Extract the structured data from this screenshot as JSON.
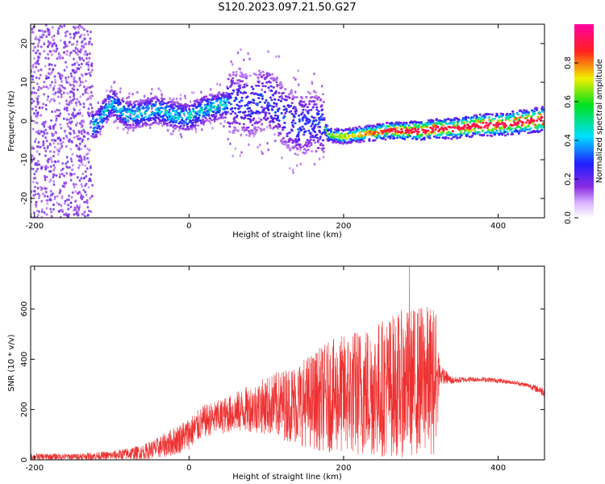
{
  "title": "S120.2023.097.21.50.G27",
  "chart_data": [
    {
      "type": "heatmap",
      "xlabel": "Height of straight line (km)",
      "ylabel": "Frequency (Hz)",
      "xlim": [
        -205,
        460
      ],
      "ylim": [
        -25,
        25
      ],
      "xticks": [
        -200,
        0,
        200,
        400
      ],
      "yticks": [
        -20,
        -10,
        0,
        10,
        20
      ],
      "colorbar": {
        "label": "Normalized spectral amplitude",
        "range": [
          0,
          1
        ],
        "ticks": [
          "0.0",
          "0.2",
          "0.4",
          "0.6",
          "0.8"
        ],
        "colormap": "rainbow (white-violet-blue-cyan-green-yellow-red-magenta)"
      },
      "ridge": {
        "x": [
          -120,
          -110,
          -100,
          -80,
          -60,
          -40,
          -20,
          0,
          20,
          40,
          60,
          80,
          100,
          120,
          140,
          160,
          175,
          180,
          200,
          220,
          240,
          260,
          280,
          300,
          320,
          340,
          360,
          380,
          400,
          420,
          440,
          460
        ],
        "freq": [
          -1,
          2,
          5,
          1.5,
          2,
          3,
          1.5,
          1,
          3,
          4,
          5,
          4,
          6,
          2,
          -1,
          0,
          -1,
          -3.5,
          -4,
          -3.5,
          -3,
          -2.5,
          -2.5,
          -2.5,
          -2,
          -2,
          -1.5,
          -1,
          -1,
          -0.5,
          0,
          0.5
        ]
      }
    },
    {
      "type": "line",
      "xlabel": "Height of straight line (km)",
      "ylabel": "SNR (10 * v/v)",
      "xlim": [
        -205,
        460
      ],
      "ylim": [
        0,
        770
      ],
      "xticks": [
        -200,
        0,
        200,
        400
      ],
      "yticks": [
        0,
        200,
        400,
        600
      ],
      "color": "#ee3030",
      "envelope": {
        "x": [
          -205,
          -150,
          -100,
          -60,
          -40,
          -20,
          0,
          20,
          40,
          60,
          80,
          100,
          120,
          140,
          160,
          180,
          200,
          220,
          240,
          260,
          280,
          300,
          320,
          325,
          340,
          360,
          380,
          400,
          420,
          440,
          460
        ],
        "low": [
          0,
          0,
          0,
          0,
          5,
          15,
          40,
          90,
          100,
          110,
          110,
          100,
          80,
          60,
          40,
          30,
          20,
          10,
          10,
          10,
          10,
          20,
          20,
          300,
          300,
          310,
          310,
          305,
          300,
          285,
          250
        ],
        "high": [
          25,
          25,
          35,
          60,
          90,
          130,
          170,
          220,
          240,
          270,
          300,
          330,
          360,
          390,
          430,
          470,
          500,
          530,
          550,
          580,
          600,
          620,
          610,
          380,
          330,
          330,
          330,
          325,
          315,
          305,
          290
        ]
      },
      "peak": {
        "x": 285,
        "y": 770
      }
    }
  ]
}
